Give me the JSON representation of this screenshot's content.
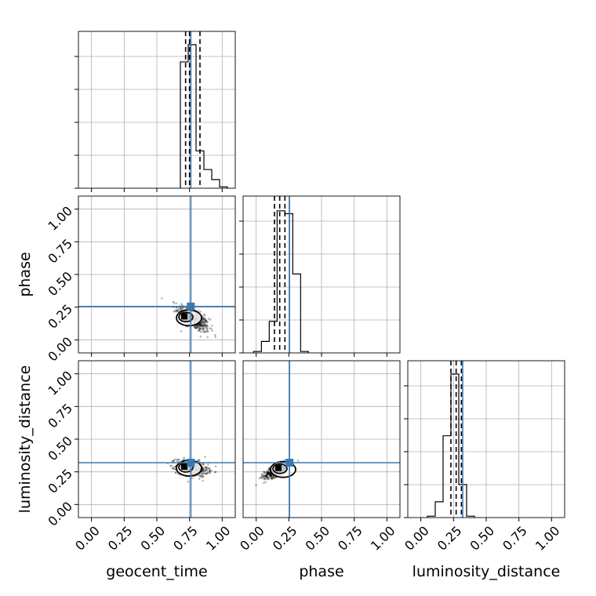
{
  "chart_data": {
    "type": "corner",
    "parameters": [
      "geocent_time",
      "phase",
      "luminosity_distance"
    ],
    "axis_labels": {
      "x": [
        "geocent_time",
        "phase",
        "luminosity_distance"
      ],
      "y": [
        "phase",
        "luminosity_distance"
      ]
    },
    "tick_values": [
      0.0,
      0.25,
      0.5,
      0.75,
      1.0
    ],
    "tick_labels": [
      "0.00",
      "0.25",
      "0.50",
      "0.75",
      "1.00"
    ],
    "axis_range": [
      -0.1,
      1.1
    ],
    "grid": true,
    "truths": {
      "geocent_time": 0.76,
      "phase": 0.255,
      "luminosity_distance": 0.32
    },
    "quantiles": {
      "geocent_time": [
        0.72,
        0.75,
        0.83
      ],
      "phase": [
        0.14,
        0.18,
        0.22
      ],
      "luminosity_distance": [
        0.23,
        0.27,
        0.31
      ]
    },
    "histograms": {
      "geocent_time": {
        "edges": [
          0.68,
          0.74,
          0.8,
          0.86,
          0.92,
          0.98,
          1.04
        ],
        "counts": [
          0.88,
          1.0,
          0.26,
          0.13,
          0.06,
          0.01
        ]
      },
      "phase": {
        "edges": [
          -0.02,
          0.04,
          0.1,
          0.16,
          0.22,
          0.28,
          0.34,
          0.4
        ],
        "counts": [
          0.01,
          0.08,
          0.22,
          0.99,
          0.97,
          0.55,
          0.01
        ]
      },
      "luminosity_distance": {
        "edges": [
          0.05,
          0.11,
          0.17,
          0.23,
          0.29,
          0.35,
          0.41
        ],
        "counts": [
          0.01,
          0.11,
          0.57,
          1.0,
          0.23,
          0.01
        ]
      }
    },
    "scatter_samples": {
      "geocent_time__phase": {
        "center": [
          0.78,
          0.16
        ],
        "spread": [
          0.06,
          0.05
        ],
        "correlation": -0.7,
        "n": 500
      },
      "geocent_time__luminosity_distance": {
        "center": [
          0.77,
          0.28
        ],
        "spread": [
          0.06,
          0.03
        ],
        "correlation": -0.3,
        "n": 500
      },
      "phase__luminosity_distance": {
        "center": [
          0.16,
          0.26
        ],
        "spread": [
          0.05,
          0.03
        ],
        "correlation": 0.7,
        "n": 500
      }
    },
    "contour_peaks": {
      "geocent_time__phase": [
        0.71,
        0.18
      ],
      "geocent_time__luminosity_distance": [
        0.71,
        0.29
      ],
      "phase__luminosity_distance": [
        0.17,
        0.28
      ]
    }
  }
}
